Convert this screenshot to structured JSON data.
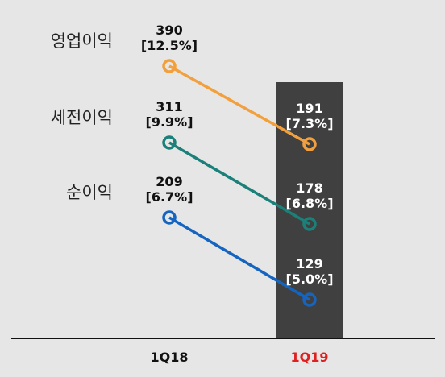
{
  "chart_data": {
    "type": "line",
    "categories": [
      "1Q18",
      "1Q19"
    ],
    "highlight_category": "1Q19",
    "series": [
      {
        "name": "영업이익",
        "values": [
          390,
          191
        ],
        "margins": [
          "[12.5%]",
          "[7.3%]"
        ],
        "color": "#f2a03d"
      },
      {
        "name": "세전이익",
        "values": [
          311,
          178
        ],
        "margins": [
          "[9.9%]",
          "[6.8%]"
        ],
        "color": "#1a8079"
      },
      {
        "name": "순이익",
        "values": [
          209,
          129
        ],
        "margins": [
          "[6.7%]",
          "[5.0%]"
        ],
        "color": "#1565c0"
      }
    ]
  },
  "colors": {
    "background": "#e6e6e6",
    "highlight_bar": "#404040",
    "highlight_category_text": "#e02020",
    "axis": "#111111"
  }
}
